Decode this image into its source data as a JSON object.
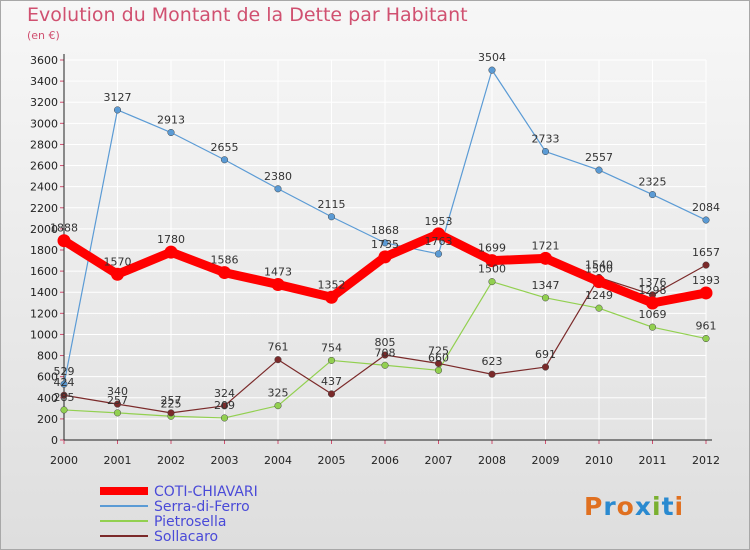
{
  "title": "Evolution du Montant de la Dette par Habitant",
  "unit": "(en €)",
  "logo": "Proxiti",
  "chart_data": {
    "type": "line",
    "title": "Evolution du Montant de la Dette par Habitant",
    "subtitle": "(en €)",
    "x": [
      "2000",
      "2001",
      "2002",
      "2003",
      "2004",
      "2005",
      "2006",
      "2007",
      "2008",
      "2009",
      "2010",
      "2011",
      "2012"
    ],
    "ylim": [
      0,
      3600
    ],
    "yticks": [
      0,
      200,
      400,
      600,
      800,
      1000,
      1200,
      1400,
      1600,
      1800,
      2000,
      2200,
      2400,
      2600,
      2800,
      3000,
      3200,
      3400,
      3600
    ],
    "grid": true,
    "legend": "bottom-left",
    "series": [
      {
        "name": "COTI-CHIAVARI",
        "color": "#ff0000",
        "values": [
          1888,
          1570,
          1780,
          1586,
          1473,
          1352,
          1735,
          1953,
          1699,
          1721,
          1500,
          1298,
          1393
        ]
      },
      {
        "name": "Serra-di-Ferro",
        "color": "#5b9bd5",
        "values": [
          529,
          3127,
          2913,
          2655,
          2380,
          2115,
          1868,
          1763,
          3504,
          2733,
          2557,
          2325,
          2084
        ]
      },
      {
        "name": "Pietrosella",
        "color": "#92d050",
        "values": [
          285,
          257,
          225,
          209,
          325,
          754,
          708,
          660,
          1500,
          1347,
          1249,
          1069,
          961
        ]
      },
      {
        "name": "Sollacaro",
        "color": "#7b2a2a",
        "values": [
          424,
          340,
          257,
          324,
          761,
          437,
          805,
          725,
          623,
          691,
          1540,
          1376,
          1657
        ]
      }
    ]
  }
}
